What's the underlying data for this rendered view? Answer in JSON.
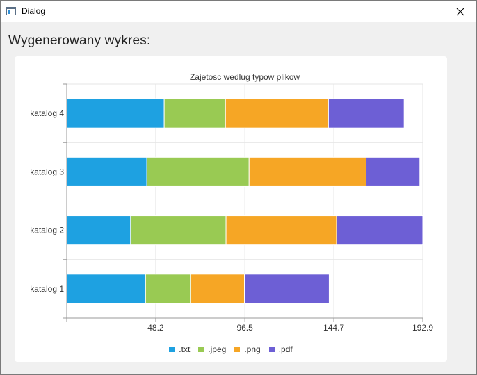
{
  "window": {
    "title": "Dialog",
    "app_icon": "dialog-app-icon",
    "close_icon": "close-icon"
  },
  "heading": "Wygenerowany wykres:",
  "colors": {
    "txt": "#1ea1e1",
    "jpeg": "#99ca53",
    "png": "#f6a625",
    "pdf": "#6d5fd5",
    "grid": "#e4e4e4",
    "axis": "#999999"
  },
  "chart_data": {
    "type": "bar",
    "orientation": "horizontal",
    "stacked": true,
    "title": "Zajetosc wedlug typow plikow",
    "categories": [
      "katalog 1",
      "katalog 2",
      "katalog 3",
      "katalog 4"
    ],
    "series": [
      {
        "name": ".txt",
        "values": [
          42.7,
          34.6,
          43.4,
          52.8
        ]
      },
      {
        "name": ".jpeg",
        "values": [
          24.3,
          51.7,
          55.4,
          33.2
        ]
      },
      {
        "name": ".png",
        "values": [
          29.3,
          59.9,
          63.4,
          55.8
        ]
      },
      {
        "name": ".pdf",
        "values": [
          45.9,
          46.7,
          29.1,
          41.0
        ]
      }
    ],
    "xlim": [
      0,
      192.9
    ],
    "xticks": [
      "48.2",
      "96.5",
      "144.7",
      "192.9"
    ],
    "grid": true,
    "legend_position": "bottom"
  }
}
